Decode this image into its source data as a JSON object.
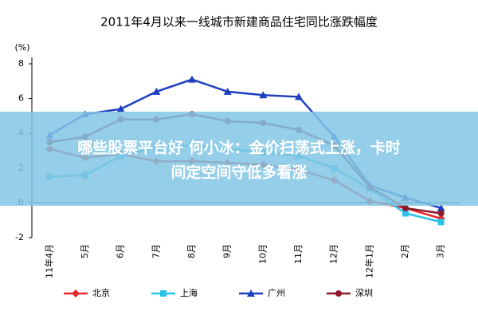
{
  "chart_data": {
    "type": "line",
    "title": "2011年4月以来一线城市新建商品住宅同比涨跌幅度",
    "y_label": "(%)",
    "categories": [
      "11年4月",
      "5月",
      "6月",
      "7月",
      "8月",
      "9月",
      "10月",
      "11月",
      "12月",
      "12年1月",
      "2月",
      "3月"
    ],
    "series": [
      {
        "name": "北京",
        "color": "#e8262b",
        "marker": "diamond",
        "values": [
          3.1,
          2.6,
          2.8,
          2.4,
          2.4,
          2.3,
          2.2,
          1.9,
          1.3,
          0.1,
          -0.3,
          -0.9
        ]
      },
      {
        "name": "上海",
        "color": "#29c4e8",
        "marker": "square",
        "values": [
          1.5,
          1.6,
          2.7,
          3.2,
          3.3,
          3.1,
          2.9,
          2.7,
          2.0,
          0.8,
          -0.6,
          -1.1
        ]
      },
      {
        "name": "广州",
        "color": "#1d3fbf",
        "marker": "triangle",
        "values": [
          3.9,
          5.1,
          5.4,
          6.4,
          7.1,
          6.4,
          6.2,
          6.1,
          3.8,
          1.0,
          0.3,
          -0.3
        ]
      },
      {
        "name": "深圳",
        "color": "#8b1a2a",
        "marker": "circle",
        "values": [
          3.5,
          3.8,
          4.8,
          4.8,
          5.1,
          4.7,
          4.6,
          4.2,
          3.3,
          0.9,
          -0.3,
          -0.6
        ]
      }
    ],
    "ylim": [
      -2,
      8
    ],
    "yticks": [
      -2,
      0,
      2,
      4,
      6,
      8
    ],
    "grid": false,
    "legend": "bottom"
  },
  "banner": {
    "lines": [
      "哪些股票平台好 何小冰：金价扫荡式上涨，卡时",
      "间定空间守低多看涨"
    ]
  }
}
